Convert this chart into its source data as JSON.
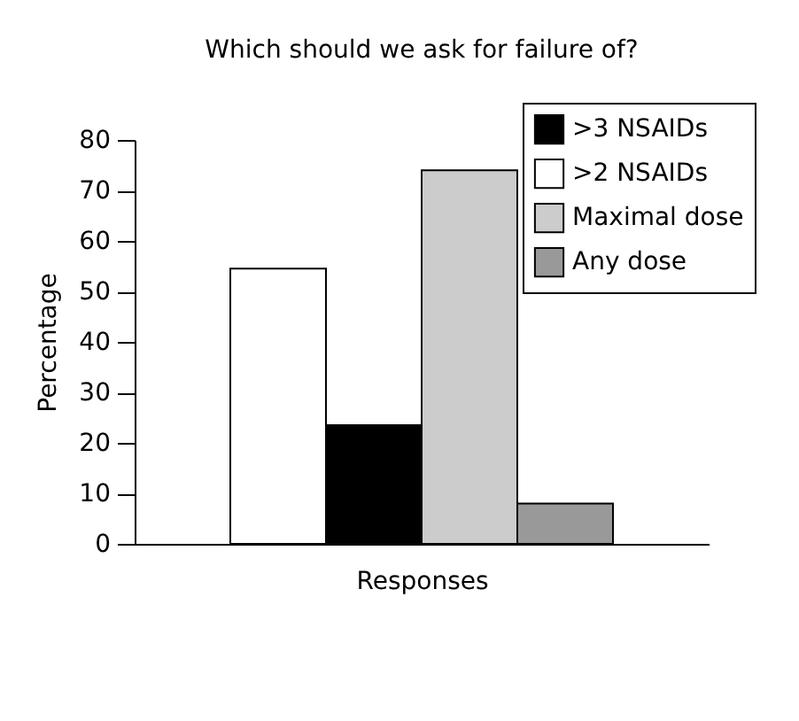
{
  "chart_data": {
    "type": "bar",
    "title": "Which should we ask for failure of?",
    "xlabel": "Responses",
    "ylabel": "Percentage",
    "categories": [
      null,
      null,
      null,
      null
    ],
    "series": [
      {
        "name": ">3 NSAIDs",
        "color": "#000000",
        "values": [
          null,
          23.5,
          null,
          null
        ]
      },
      {
        "name": ">2 NSAIDs",
        "color": "#ffffff",
        "values": [
          54.5,
          null,
          null,
          null
        ]
      },
      {
        "name": "Maximal dose",
        "color": "#cccccc",
        "values": [
          null,
          null,
          74,
          null
        ]
      },
      {
        "name": "Any dose",
        "color": "#999999",
        "values": [
          null,
          null,
          null,
          8
        ]
      }
    ],
    "ylim": [
      0,
      80
    ],
    "yticks": [
      0,
      10,
      20,
      30,
      40,
      50,
      60,
      70,
      80
    ],
    "grid": false,
    "legend": "top right",
    "tick_labels": "y"
  }
}
